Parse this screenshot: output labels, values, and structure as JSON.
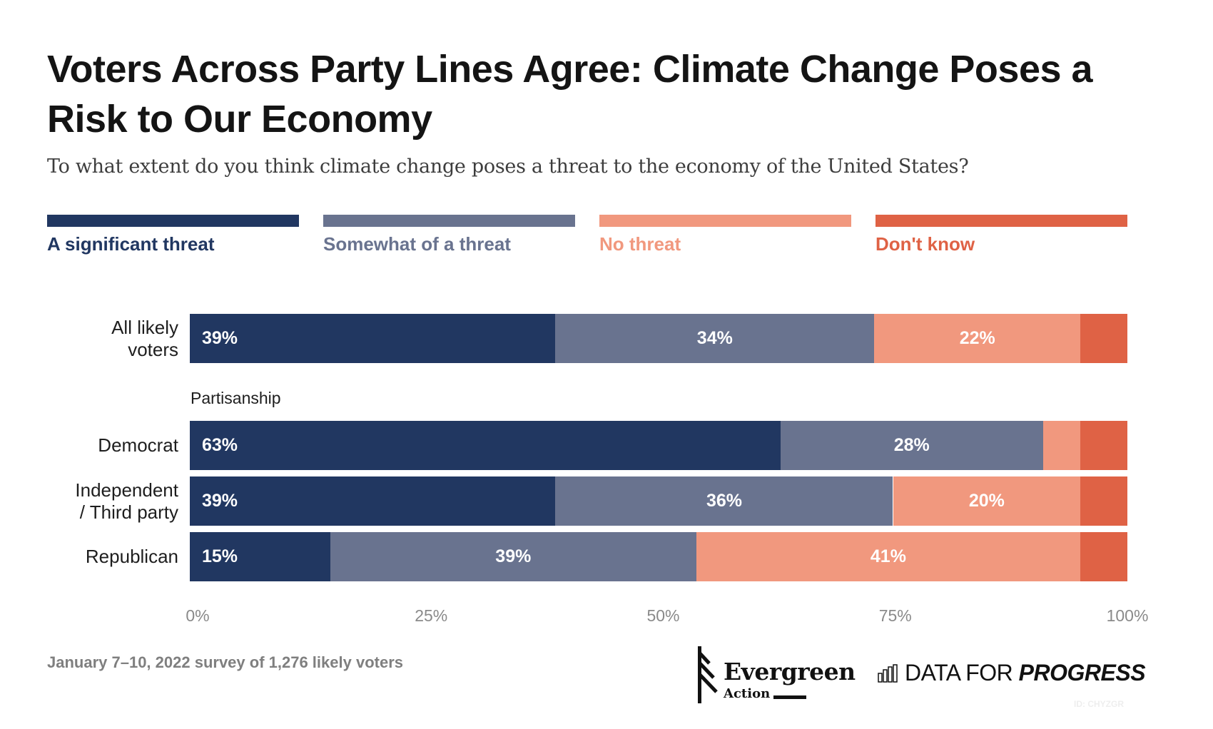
{
  "chart_data": {
    "type": "bar",
    "orientation": "horizontal",
    "stacked": true,
    "title": "Voters Across Party Lines Agree: Climate Change Poses a Risk to Our Economy",
    "subtitle": "To what extent do you think climate change poses a threat to the economy of the United States?",
    "xlabel": "",
    "ylabel": "",
    "xlim": [
      0,
      100
    ],
    "x_ticks": [
      "0%",
      "25%",
      "50%",
      "75%",
      "100%"
    ],
    "legend_position": "top",
    "grid": false,
    "categories": [
      "All likely voters",
      "Democrat",
      "Independent / Third party",
      "Republican"
    ],
    "category_lines": [
      [
        "All likely",
        "voters"
      ],
      [
        "Democrat"
      ],
      [
        "Independent",
        "/ Third party"
      ],
      [
        "Republican"
      ]
    ],
    "group_label": "Partisanship",
    "series": [
      {
        "name": "A significant threat",
        "color": "#213761",
        "values": [
          39,
          63,
          39,
          15
        ],
        "labels": [
          "39%",
          "63%",
          "39%",
          "15%"
        ]
      },
      {
        "name": "Somewhat of a threat",
        "color": "#69738f",
        "values": [
          34,
          28,
          36,
          39
        ],
        "labels": [
          "34%",
          "28%",
          "36%",
          "39%"
        ]
      },
      {
        "name": "No threat",
        "color": "#f1987e",
        "values": [
          22,
          4,
          20,
          41
        ],
        "labels": [
          "22%",
          "",
          "20%",
          "41%"
        ]
      },
      {
        "name": "Don't know",
        "color": "#df6245",
        "values": [
          5,
          5,
          5,
          5
        ],
        "labels": [
          "",
          "",
          "",
          ""
        ]
      }
    ]
  },
  "footer": {
    "note": "January 7–10, 2022 survey of 1,276 likely voters",
    "chart_id": "ID: CHYZGR"
  },
  "logos": {
    "evergreen_name": "Evergreen",
    "evergreen_sub": "Action",
    "dfp_regular": "DATA FOR ",
    "dfp_bold": "PROGRESS"
  }
}
